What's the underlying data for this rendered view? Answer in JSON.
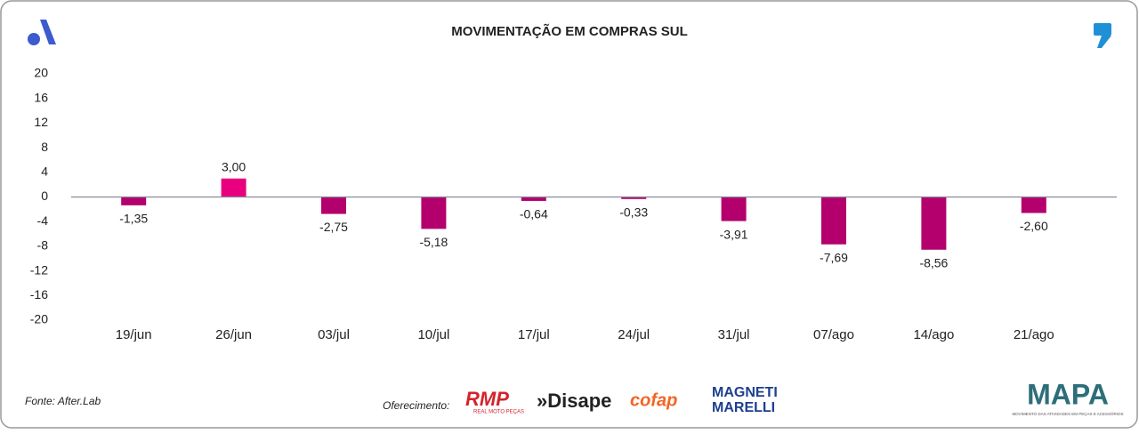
{
  "chart_data": {
    "type": "bar",
    "title": "MOVIMENTAÇÃO EM COMPRAS SUL",
    "categories": [
      "19/jun",
      "26/jun",
      "03/jul",
      "10/jul",
      "17/jul",
      "24/jul",
      "31/jul",
      "07/ago",
      "14/ago",
      "21/ago"
    ],
    "values": [
      -1.35,
      3.0,
      -2.75,
      -5.18,
      -0.64,
      -0.33,
      -3.91,
      -7.69,
      -8.56,
      -2.6
    ],
    "value_labels": [
      "-1,35",
      "3,00",
      "-2,75",
      "-5,18",
      "-0,64",
      "-0,33",
      "-3,91",
      "-7,69",
      "-8,56",
      "-2,60"
    ],
    "colors": [
      "#b3006d",
      "#e8007f",
      "#b3006d",
      "#b3006d",
      "#b3006d",
      "#b3006d",
      "#b3006d",
      "#b3006d",
      "#b3006d",
      "#b3006d"
    ],
    "ylim": [
      -20,
      20
    ],
    "yticks": [
      20,
      16,
      12,
      8,
      4,
      0,
      -4,
      -8,
      -12,
      -16,
      -20
    ],
    "grid": false
  },
  "footer": {
    "source": "Fonte: After.Lab",
    "sponsor_label": "Oferecimento:",
    "sponsors": [
      "RMP",
      "REAL MOTO PEÇAS",
      "»Disape",
      "cofap",
      "MAGNETI",
      "MARELLI"
    ],
    "brand": "MAPA",
    "brand_tagline": "MOVIMENTO DAS ATIVIDADES EM PEÇAS E ACESSÓRIOS"
  }
}
